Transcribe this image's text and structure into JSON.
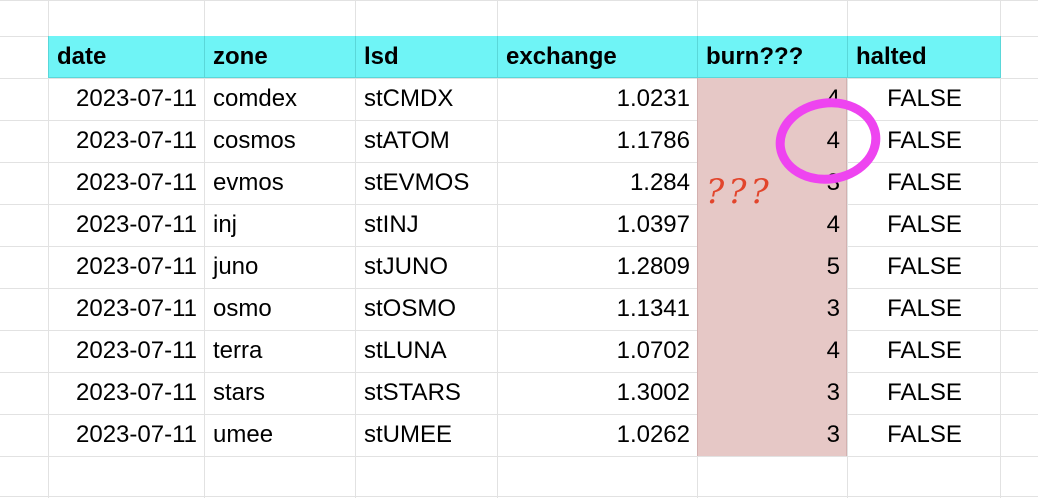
{
  "sheet": {
    "headers": {
      "date": "date",
      "zone": "zone",
      "lsd": "lsd",
      "exchange": "exchange",
      "burn": "burn???",
      "halted": "halted"
    },
    "rows": [
      {
        "date": "2023-07-11",
        "zone": "comdex",
        "lsd": "stCMDX",
        "exchange": "1.0231",
        "burn": "4",
        "halted": "FALSE"
      },
      {
        "date": "2023-07-11",
        "zone": "cosmos",
        "lsd": "stATOM",
        "exchange": "1.1786",
        "burn": "4",
        "halted": "FALSE"
      },
      {
        "date": "2023-07-11",
        "zone": "evmos",
        "lsd": "stEVMOS",
        "exchange": "1.284",
        "burn": "3",
        "halted": "FALSE"
      },
      {
        "date": "2023-07-11",
        "zone": "inj",
        "lsd": "stINJ",
        "exchange": "1.0397",
        "burn": "4",
        "halted": "FALSE"
      },
      {
        "date": "2023-07-11",
        "zone": "juno",
        "lsd": "stJUNO",
        "exchange": "1.2809",
        "burn": "5",
        "halted": "FALSE"
      },
      {
        "date": "2023-07-11",
        "zone": "osmo",
        "lsd": "stOSMO",
        "exchange": "1.1341",
        "burn": "3",
        "halted": "FALSE"
      },
      {
        "date": "2023-07-11",
        "zone": "terra",
        "lsd": "stLUNA",
        "exchange": "1.0702",
        "burn": "4",
        "halted": "FALSE"
      },
      {
        "date": "2023-07-11",
        "zone": "stars",
        "lsd": "stSTARS",
        "exchange": "1.3002",
        "burn": "3",
        "halted": "FALSE"
      },
      {
        "date": "2023-07-11",
        "zone": "umee",
        "lsd": "stUMEE",
        "exchange": "1.0262",
        "burn": "3",
        "halted": "FALSE"
      }
    ]
  },
  "annotations": {
    "scribble_text": "???",
    "circle_color": "#ee44f0",
    "scribble_color": "#e2452c"
  },
  "colors": {
    "header_bg": "#6ff4f6",
    "burn_column_bg": "#e6c8c6"
  }
}
